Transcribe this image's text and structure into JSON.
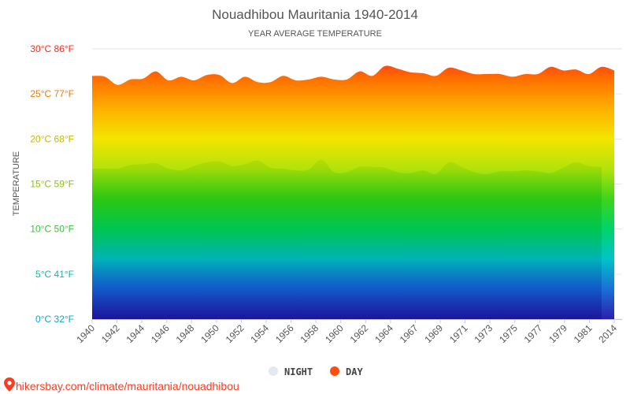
{
  "chart_data": {
    "type": "area",
    "title": "Nouadhibou Mauritania 1940-2014",
    "subtitle": "YEAR AVERAGE TEMPERATURE",
    "ylabel": "TEMPERATURE",
    "ylim": [
      0,
      30
    ],
    "y_ticks": [
      {
        "value": 0,
        "label": "0°C 32°F",
        "color": "#16a2cc"
      },
      {
        "value": 5,
        "label": "5°C 41°F",
        "color": "#12b3b8"
      },
      {
        "value": 10,
        "label": "10°C 50°F",
        "color": "#3cbf3c"
      },
      {
        "value": 15,
        "label": "15°C 59°F",
        "color": "#8fbf10"
      },
      {
        "value": 20,
        "label": "20°C 68°F",
        "color": "#c5b800"
      },
      {
        "value": 25,
        "label": "25°C 77°F",
        "color": "#f07a10"
      },
      {
        "value": 30,
        "label": "30°C 86°F",
        "color": "#ff2a1a"
      }
    ],
    "x_tick_labels": [
      "1940",
      "1942",
      "1944",
      "1946",
      "1948",
      "1950",
      "1952",
      "1954",
      "1956",
      "1958",
      "1960",
      "1962",
      "1964",
      "1967",
      "1969",
      "1971",
      "1973",
      "1975",
      "1977",
      "1979",
      "1981",
      "2014"
    ],
    "x": [
      1940,
      1941,
      1942,
      1943,
      1944,
      1945,
      1946,
      1947,
      1948,
      1949,
      1950,
      1951,
      1952,
      1953,
      1954,
      1955,
      1956,
      1957,
      1958,
      1959,
      1960,
      1961,
      1962,
      1963,
      1964,
      1966,
      1967,
      1968,
      1969,
      1970,
      1971,
      1972,
      1973,
      1974,
      1975,
      1976,
      1977,
      1978,
      1979,
      1980,
      1981,
      2014
    ],
    "series": [
      {
        "name": "NIGHT",
        "color": "#e3e9ef",
        "values": [
          16.7,
          16.7,
          16.7,
          17.1,
          17.2,
          17.3,
          16.7,
          16.5,
          17.0,
          17.4,
          17.5,
          17.0,
          17.2,
          17.6,
          16.8,
          16.7,
          16.5,
          16.6,
          17.7,
          16.3,
          16.3,
          16.9,
          16.9,
          16.8,
          16.3,
          16.2,
          16.5,
          16.1,
          17.4,
          16.9,
          16.3,
          16.1,
          16.4,
          16.4,
          16.5,
          16.4,
          16.2,
          16.8,
          17.4,
          17.0,
          16.9,
          null
        ]
      },
      {
        "name": "DAY",
        "color": "#ff4d14",
        "values": [
          27.0,
          26.9,
          26.0,
          26.6,
          26.7,
          27.5,
          26.5,
          26.9,
          26.5,
          27.1,
          27.1,
          26.2,
          26.9,
          26.3,
          26.3,
          27.0,
          26.5,
          26.6,
          26.9,
          26.6,
          26.6,
          27.5,
          27.0,
          28.1,
          27.8,
          27.4,
          27.3,
          27.0,
          27.9,
          27.6,
          27.2,
          27.2,
          27.2,
          26.9,
          27.2,
          27.2,
          28.0,
          27.6,
          27.7,
          27.2,
          28.0,
          27.6
        ]
      }
    ],
    "gradient_colors": [
      "#2a1fae",
      "#1b6fd6",
      "#00c3c8",
      "#00d36a",
      "#3cd41c",
      "#b2e30a",
      "#f2e500",
      "#ffb000",
      "#ff6f00",
      "#ff1f24"
    ],
    "legend_position": "bottom",
    "grid": true
  },
  "source_text": "hikersbay.com/climate/mauritania/nouadhibou"
}
